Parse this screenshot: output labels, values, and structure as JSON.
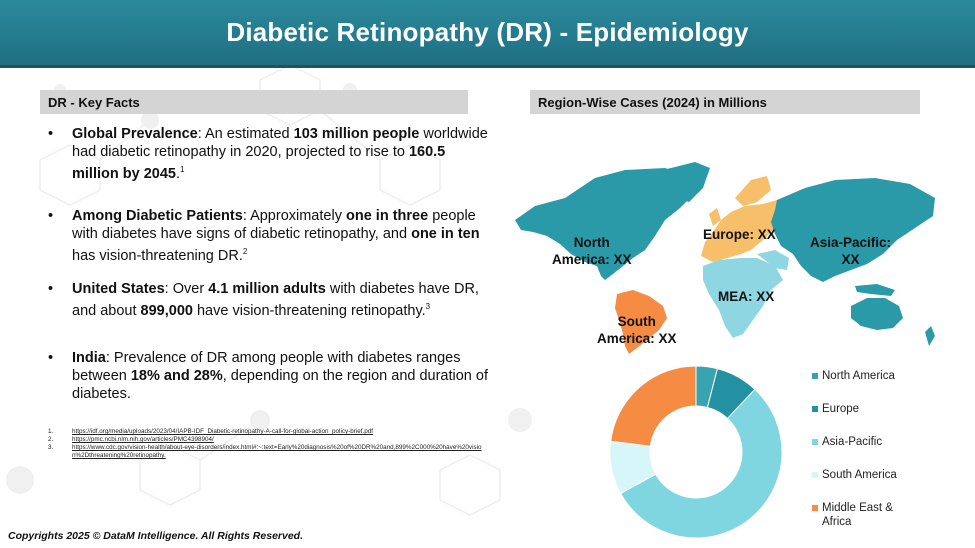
{
  "header": {
    "title": "Diabetic Retinopathy (DR) - Epidemiology"
  },
  "left_panel": {
    "title": "DR - Key Facts",
    "facts": [
      {
        "segments": [
          {
            "text": "Global Prevalence",
            "bold": true
          },
          {
            "text": ": An estimated ",
            "bold": false
          },
          {
            "text": "103 million people",
            "bold": true
          },
          {
            "text": " worldwide had diabetic retinopathy in 2020, projected to rise to ",
            "bold": false
          },
          {
            "text": "160.5 million by 2045",
            "bold": true
          },
          {
            "text": ".",
            "bold": false
          }
        ],
        "sup": "1"
      },
      {
        "segments": [
          {
            "text": "Among Diabetic Patients",
            "bold": true
          },
          {
            "text": ": Approximately ",
            "bold": false
          },
          {
            "text": "one in three",
            "bold": true
          },
          {
            "text": " people with diabetes have signs of diabetic retinopathy, and ",
            "bold": false
          },
          {
            "text": "one in ten",
            "bold": true
          },
          {
            "text": " has vision-threatening DR.",
            "bold": false
          }
        ],
        "sup": "2"
      },
      {
        "segments": [
          {
            "text": "United States",
            "bold": true
          },
          {
            "text": ": Over ",
            "bold": false
          },
          {
            "text": "4.1 million adults",
            "bold": true
          },
          {
            "text": " with diabetes have DR, and about ",
            "bold": false
          },
          {
            "text": "899,000",
            "bold": true
          },
          {
            "text": " have vision-threatening retinopathy.",
            "bold": false
          }
        ],
        "sup": "3"
      },
      {
        "segments": [
          {
            "text": "India",
            "bold": true
          },
          {
            "text": ": Prevalence of DR among people with diabetes ranges between ",
            "bold": false
          },
          {
            "text": "18% and 28%",
            "bold": true
          },
          {
            "text": ", depending on the region and duration of diabetes.",
            "bold": false
          }
        ],
        "sup": ""
      }
    ],
    "references": [
      {
        "num": "1.",
        "text": "https://idf.org/media/uploads/2023/04/IAPB-IDF_Diabetic-retinopathy-A-call-for-global-action_policy-brief.pdf"
      },
      {
        "num": "2.",
        "text": "https://pmc.ncbi.nlm.nih.gov/articles/PMC4398904/"
      },
      {
        "num": "3.",
        "text": "https://www.cdc.gov/vision-health/about-eye-disorders/index.html#:~:text=Early%20diagnosis%20of%20DR%20and,899%2C000%20have%20vision%2Dthreatening%20retinopathy."
      }
    ]
  },
  "right_panel": {
    "title": "Region-Wise Cases (2024) in Millions",
    "map_labels": {
      "north_america": "North\nAmerica: XX",
      "europe": "Europe: XX",
      "asia_pacific": "Asia-Pacific:\nXX",
      "mea": "MEA: XX",
      "south_america": "South\nAmerica: XX"
    }
  },
  "chart_data": {
    "type": "pie",
    "donut": true,
    "categories": [
      "North America",
      "Europe",
      "Asia-Pacific",
      "South America",
      "Middle East & Africa"
    ],
    "values": [
      4,
      8,
      55,
      10,
      23
    ],
    "colors": [
      "#3aa3b0",
      "#2491a3",
      "#7fd6e0",
      "#d6f6f9",
      "#f68b44"
    ],
    "legend_position": "right"
  },
  "legend": [
    {
      "label": "North America",
      "color": "#3aa3b0"
    },
    {
      "label": "Europe",
      "color": "#2491a3"
    },
    {
      "label": "Asia-Pacific",
      "color": "#7fd6e0"
    },
    {
      "label": "South America",
      "color": "#d6f6f9"
    },
    {
      "label": "Middle East &\nAfrica",
      "color": "#f68b44"
    }
  ],
  "footer": {
    "copyright": "Copyrights 2025 © DataM Intelligence. All Rights Reserved."
  },
  "colors": {
    "header": "#1f7a8c",
    "section_bar": "#d4d4d4",
    "map_teal": "#2a9aa8",
    "map_orange": "#f68b44",
    "map_yellow": "#f7bf6a",
    "map_light": "#8ed6e1"
  }
}
